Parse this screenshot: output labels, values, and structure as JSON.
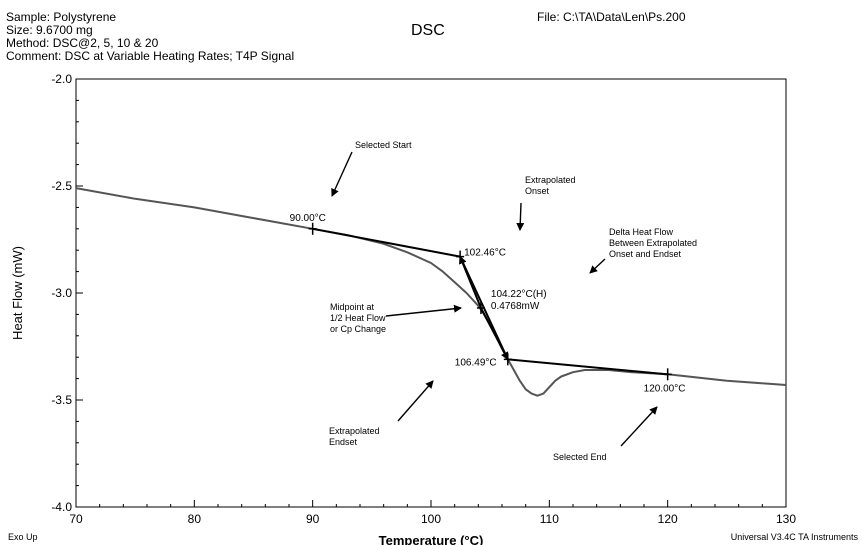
{
  "header": {
    "sample": "Sample: Polystyrene",
    "size": "Size:  9.6700 mg",
    "method": "Method: DSC@2, 5, 10 & 20",
    "comment": "Comment: DSC at Variable Heating Rates; T4P Signal",
    "title": "DSC",
    "file": "File: C:\\TA\\Data\\Len\\Ps.200"
  },
  "footer": {
    "exo": "Exo Up",
    "software": "Universal V3.4C TA Instruments"
  },
  "chart_data": {
    "type": "line",
    "xlabel": "Temperature (°C)",
    "ylabel": "Heat Flow (mW)",
    "xlim": [
      70,
      130
    ],
    "ylim": [
      -4.0,
      -2.0
    ],
    "x_ticks": [
      70,
      80,
      90,
      100,
      110,
      120,
      130
    ],
    "y_ticks": [
      -4.0,
      -3.5,
      -3.0,
      -2.5,
      -2.0
    ],
    "x_tick_labels": [
      "70",
      "80",
      "90",
      "100",
      "110",
      "120",
      "130"
    ],
    "y_tick_labels": [
      "-4.0",
      "-3.5",
      "-3.0",
      "-2.5",
      "-2.0"
    ],
    "series": [
      {
        "x": [
          70,
          75,
          80,
          85,
          90,
          93,
          96,
          98,
          100,
          101,
          102,
          103,
          104,
          104.5,
          105,
          105.5,
          106,
          106.5,
          107,
          107.5,
          108,
          108.5,
          109,
          109.5,
          110,
          110.5,
          111,
          112,
          113,
          114,
          115,
          117,
          120,
          125,
          130
        ],
        "y": [
          -2.51,
          -2.56,
          -2.6,
          -2.65,
          -2.7,
          -2.73,
          -2.77,
          -2.81,
          -2.86,
          -2.9,
          -2.95,
          -3.0,
          -3.06,
          -3.1,
          -3.15,
          -3.2,
          -3.26,
          -3.31,
          -3.36,
          -3.41,
          -3.45,
          -3.47,
          -3.48,
          -3.47,
          -3.44,
          -3.41,
          -3.39,
          -3.37,
          -3.36,
          -3.36,
          -3.36,
          -3.37,
          -3.38,
          -3.41,
          -3.43
        ]
      }
    ],
    "construction_lines": [
      {
        "x": [
          90,
          102.46
        ],
        "y": [
          -2.7,
          -2.83
        ]
      },
      {
        "x": [
          102.46,
          106.49
        ],
        "y": [
          -2.83,
          -3.31
        ]
      },
      {
        "x": [
          106.49,
          120
        ],
        "y": [
          -3.31,
          -3.38
        ]
      }
    ],
    "markers": [
      {
        "x": 90,
        "y": -2.7
      },
      {
        "x": 102.46,
        "y": -2.83
      },
      {
        "x": 104.22,
        "y": -3.07
      },
      {
        "x": 106.49,
        "y": -3.31
      },
      {
        "x": 120,
        "y": -3.38
      }
    ],
    "value_labels": [
      {
        "text": "90.00°C",
        "x": 90,
        "y": -2.7
      },
      {
        "text": "102.46°C",
        "x": 102.46,
        "y": -2.83
      },
      {
        "text": "104.22°C(H)",
        "x": 104.22,
        "y": -3.07
      },
      {
        "text": "0.4768mW",
        "x": 104.22,
        "y": -3.07
      },
      {
        "text": "106.49°C",
        "x": 106.49,
        "y": -3.31
      },
      {
        "text": "120.00°C",
        "x": 120,
        "y": -3.38
      }
    ],
    "annotations": [
      {
        "lines": [
          "Selected Start"
        ]
      },
      {
        "lines": [
          "Extrapolated",
          "Onset"
        ]
      },
      {
        "lines": [
          "Delta Heat Flow",
          "Between Extrapolated",
          "Onset and Endset"
        ]
      },
      {
        "lines": [
          "Midpoint at",
          "1/2 Heat Flow",
          "or Cp Change"
        ]
      },
      {
        "lines": [
          "Extrapolated",
          "Endset"
        ]
      },
      {
        "lines": [
          "Selected End"
        ]
      }
    ]
  }
}
